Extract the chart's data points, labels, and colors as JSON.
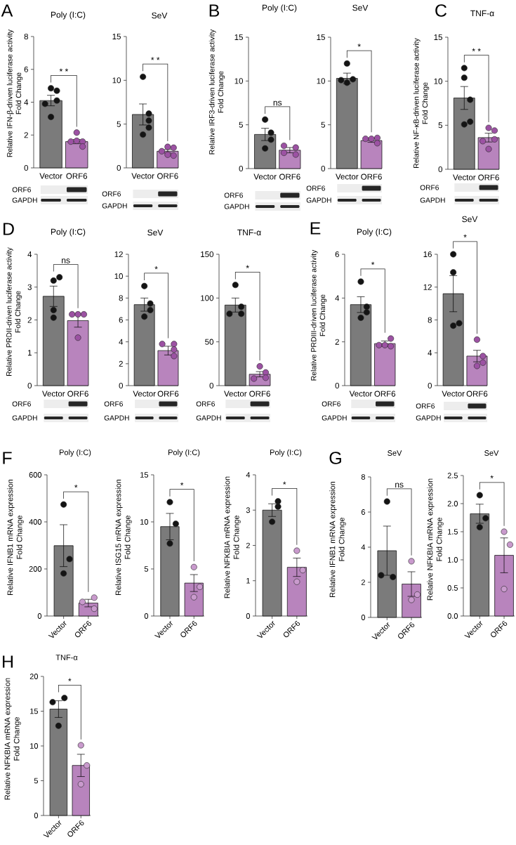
{
  "chart_data": [
    {
      "type": "bar",
      "title": "Poly (I:C)",
      "ylabel": "Relative IFN-β-driven luciferase activity\nFold Change",
      "categories": [
        "Vector",
        "ORF6"
      ],
      "ylim": [
        0,
        8
      ],
      "yticks": [
        0,
        2,
        4,
        6,
        8
      ],
      "annotations": [
        "* *",
        "ORF6",
        "GAPDH",
        "A"
      ],
      "series": [
        {
          "type": "bar",
          "values": [
            4.1,
            1.6
          ],
          "colors": [
            "#7b7b7b",
            "#b884bd"
          ],
          "errors": [
            0.32,
            0.13
          ]
        },
        {
          "type": "scatter",
          "marker": "circle",
          "color": "#141414",
          "x": [
            "Vector",
            "Vector",
            "Vector",
            "Vector",
            "Vector"
          ],
          "values": [
            4.85,
            4.7,
            4.1,
            3.9,
            3.1
          ]
        },
        {
          "type": "scatter",
          "marker": "circle",
          "color": "#9c52a3",
          "x": [
            "ORF6",
            "ORF6",
            "ORF6",
            "ORF6",
            "ORF6"
          ],
          "values": [
            2.15,
            1.6,
            1.6,
            1.65,
            1.3
          ]
        }
      ]
    },
    {
      "type": "bar",
      "title": "SeV",
      "categories": [
        "Vector",
        "ORF6"
      ],
      "ylim": [
        0,
        15
      ],
      "yticks": [
        0,
        5,
        10,
        15
      ],
      "annotations": [
        "* *",
        "ORF6",
        "GAPDH"
      ],
      "series": [
        {
          "type": "bar",
          "values": [
            6.1,
            1.9
          ],
          "colors": [
            "#7b7b7b",
            "#b884bd"
          ],
          "errors": [
            1.2,
            0.2
          ]
        },
        {
          "type": "scatter",
          "marker": "circle",
          "color": "#141414",
          "x": [
            "Vector",
            "Vector",
            "Vector",
            "Vector",
            "Vector"
          ],
          "values": [
            10.4,
            6.2,
            5.4,
            4.6,
            3.8
          ]
        },
        {
          "type": "scatter",
          "marker": "circle",
          "color": "#9c52a3",
          "x": [
            "ORF6",
            "ORF6",
            "ORF6",
            "ORF6",
            "ORF6"
          ],
          "values": [
            2.3,
            1.9,
            2.4,
            1.4,
            1.5
          ]
        }
      ]
    },
    {
      "type": "bar",
      "title": "Poly (I:C)",
      "ylabel": "Relative IRF3-driven luciferase activity\nFold Change",
      "categories": [
        "Vector",
        "ORF6"
      ],
      "ylim": [
        0,
        15
      ],
      "yticks": [
        0,
        5,
        10,
        15
      ],
      "annotations": [
        "ns",
        "ORF6",
        "GAPDH",
        "B"
      ],
      "series": [
        {
          "type": "bar",
          "values": [
            3.9,
            2.1
          ],
          "colors": [
            "#7b7b7b",
            "#b884bd"
          ],
          "errors": [
            0.7,
            0.3
          ]
        },
        {
          "type": "scatter",
          "marker": "circle",
          "color": "#141414",
          "x": [
            "Vector",
            "Vector",
            "Vector",
            "Vector"
          ],
          "values": [
            5.6,
            4.1,
            3.3,
            2.3
          ]
        },
        {
          "type": "scatter",
          "marker": "circle",
          "color": "#9c52a3",
          "x": [
            "ORF6",
            "ORF6",
            "ORF6",
            "ORF6"
          ],
          "values": [
            2.4,
            2.6,
            1.6,
            1.8
          ]
        }
      ]
    },
    {
      "type": "bar",
      "title": "SeV",
      "categories": [
        "Vector",
        "ORF6"
      ],
      "ylim": [
        0,
        15
      ],
      "yticks": [
        0,
        5,
        10,
        15
      ],
      "annotations": [
        "*",
        "ORF6",
        "GAPDH"
      ],
      "series": [
        {
          "type": "bar",
          "values": [
            10.3,
            3.2
          ],
          "colors": [
            "#7b7b7b",
            "#b884bd"
          ],
          "errors": [
            0.6,
            0.2
          ]
        },
        {
          "type": "scatter",
          "marker": "circle",
          "color": "#141414",
          "x": [
            "Vector",
            "Vector",
            "Vector",
            "Vector"
          ],
          "values": [
            12.0,
            10.2,
            10.1,
            9.8
          ]
        },
        {
          "type": "scatter",
          "marker": "circle",
          "color": "#9c52a3",
          "x": [
            "ORF6",
            "ORF6",
            "ORF6",
            "ORF6"
          ],
          "values": [
            3.5,
            3.4,
            3.4,
            2.9
          ]
        }
      ]
    },
    {
      "type": "bar",
      "title": "TNF-α",
      "ylabel": "Relative NF-κB-driven luciferase activity\nFold Change",
      "categories": [
        "Vector",
        "ORF6"
      ],
      "ylim": [
        0,
        15
      ],
      "yticks": [
        0,
        5,
        10,
        15
      ],
      "annotations": [
        "* *",
        "ORF6",
        "GAPDH",
        "C"
      ],
      "series": [
        {
          "type": "bar",
          "values": [
            8.1,
            3.6
          ],
          "colors": [
            "#7b7b7b",
            "#b884bd"
          ],
          "errors": [
            1.3,
            0.5
          ]
        },
        {
          "type": "scatter",
          "marker": "circle",
          "color": "#141414",
          "x": [
            "Vector",
            "Vector",
            "Vector",
            "Vector",
            "Vector"
          ],
          "values": [
            11.5,
            10.4,
            7.9,
            5.1,
            5.4
          ]
        },
        {
          "type": "scatter",
          "marker": "circle",
          "color": "#9c52a3",
          "x": [
            "ORF6",
            "ORF6",
            "ORF6",
            "ORF6",
            "ORF6"
          ],
          "values": [
            4.7,
            4.4,
            3.4,
            3.2,
            2.3
          ]
        }
      ]
    },
    {
      "type": "bar",
      "title": "Poly (I:C)",
      "ylabel": "Relative PRDII-driven luciferase activity\nFold Change",
      "categories": [
        "Vector",
        "ORF6"
      ],
      "ylim": [
        0,
        4
      ],
      "yticks": [
        0,
        1,
        2,
        3,
        4
      ],
      "annotations": [
        "ns",
        "ORF6",
        "GAPDH",
        "D"
      ],
      "series": [
        {
          "type": "bar",
          "values": [
            2.72,
            1.98
          ],
          "colors": [
            "#7b7b7b",
            "#b884bd"
          ],
          "errors": [
            0.31,
            0.2
          ]
        },
        {
          "type": "scatter",
          "marker": "circle",
          "color": "#141414",
          "x": [
            "Vector",
            "Vector",
            "Vector",
            "Vector"
          ],
          "values": [
            3.2,
            3.3,
            2.3,
            2.07
          ]
        },
        {
          "type": "scatter",
          "marker": "circle",
          "color": "#9c52a3",
          "x": [
            "ORF6",
            "ORF6",
            "ORF6",
            "ORF6"
          ],
          "values": [
            2.17,
            2.17,
            2.17,
            1.46
          ]
        }
      ]
    },
    {
      "type": "bar",
      "title": "SeV",
      "categories": [
        "Vector",
        "ORF6"
      ],
      "ylim": [
        0,
        12
      ],
      "yticks": [
        0,
        2,
        4,
        6,
        8,
        10,
        12
      ],
      "annotations": [
        "*",
        "ORF6",
        "GAPDH"
      ],
      "series": [
        {
          "type": "bar",
          "values": [
            7.4,
            3.2
          ],
          "colors": [
            "#7b7b7b",
            "#b884bd"
          ],
          "errors": [
            0.6,
            0.4
          ]
        },
        {
          "type": "scatter",
          "marker": "circle",
          "color": "#141414",
          "x": [
            "Vector",
            "Vector",
            "Vector",
            "Vector"
          ],
          "values": [
            9.1,
            7.5,
            6.9,
            6.3
          ]
        },
        {
          "type": "scatter",
          "marker": "circle",
          "color": "#9c52a3",
          "x": [
            "ORF6",
            "ORF6",
            "ORF6",
            "ORF6"
          ],
          "values": [
            3.8,
            3.8,
            3.3,
            2.7
          ]
        }
      ]
    },
    {
      "type": "bar",
      "title": "TNF-α",
      "categories": [
        "Vector",
        "ORF6"
      ],
      "ylim": [
        0,
        150
      ],
      "yticks": [
        0,
        50,
        100,
        150
      ],
      "annotations": [
        "*",
        "ORF6",
        "GAPDH"
      ],
      "series": [
        {
          "type": "bar",
          "values": [
            92,
            13
          ],
          "colors": [
            "#7b7b7b",
            "#b884bd"
          ],
          "errors": [
            8,
            3
          ]
        },
        {
          "type": "scatter",
          "marker": "circle",
          "color": "#141414",
          "x": [
            "Vector",
            "Vector",
            "Vector",
            "Vector"
          ],
          "values": [
            115,
            90,
            82,
            82
          ]
        },
        {
          "type": "scatter",
          "marker": "circle",
          "color": "#9c52a3",
          "x": [
            "ORF6",
            "ORF6",
            "ORF6",
            "ORF6"
          ],
          "values": [
            22,
            15,
            9,
            8
          ]
        }
      ]
    },
    {
      "type": "bar",
      "title": "Poly (I:C)",
      "ylabel": "Relative PRDIII-driven luciferase activity\nFold Change",
      "categories": [
        "Vector",
        "ORF6"
      ],
      "ylim": [
        0,
        6
      ],
      "yticks": [
        0,
        2,
        4,
        6
      ],
      "annotations": [
        "*",
        "ORF6",
        "GAPDH",
        "E"
      ],
      "series": [
        {
          "type": "bar",
          "values": [
            3.7,
            1.92
          ],
          "colors": [
            "#7b7b7b",
            "#b884bd"
          ],
          "errors": [
            0.36,
            0.12
          ]
        },
        {
          "type": "scatter",
          "marker": "circle",
          "color": "#141414",
          "x": [
            "Vector",
            "Vector",
            "Vector",
            "Vector"
          ],
          "values": [
            4.75,
            3.6,
            3.35,
            3.1
          ]
        },
        {
          "type": "scatter",
          "marker": "circle",
          "color": "#9c52a3",
          "x": [
            "ORF6",
            "ORF6",
            "ORF6",
            "ORF6"
          ],
          "values": [
            2.15,
            1.8,
            1.85,
            1.85
          ]
        }
      ]
    },
    {
      "type": "bar",
      "title": "SeV",
      "categories": [
        "Vector",
        "ORF6"
      ],
      "ylim": [
        0,
        16
      ],
      "yticks": [
        0,
        4,
        8,
        12,
        16
      ],
      "annotations": [
        "*",
        "ORF6",
        "GAPDH"
      ],
      "series": [
        {
          "type": "bar",
          "values": [
            11.2,
            3.6
          ],
          "colors": [
            "#7b7b7b",
            "#b884bd"
          ],
          "errors": [
            2.2,
            0.7
          ]
        },
        {
          "type": "scatter",
          "marker": "circle",
          "color": "#141414",
          "x": [
            "Vector",
            "Vector",
            "Vector",
            "Vector"
          ],
          "values": [
            16,
            13.8,
            7.3,
            7.6
          ]
        },
        {
          "type": "scatter",
          "marker": "circle",
          "color": "#9c52a3",
          "x": [
            "ORF6",
            "ORF6",
            "ORF6",
            "ORF6"
          ],
          "values": [
            5.6,
            3.6,
            2.4,
            2.8
          ]
        }
      ]
    },
    {
      "type": "bar",
      "title": "Poly (I:C)",
      "ylabel": "Relative IFNB1 mRNA expression\nFold Change",
      "categories": [
        "Vector",
        "ORF6"
      ],
      "ylim": [
        0,
        600
      ],
      "yticks": [
        0,
        200,
        400,
        600
      ],
      "annotations": [
        "*",
        "F"
      ],
      "series": [
        {
          "type": "bar",
          "values": [
            299,
            55
          ],
          "colors": [
            "#7b7b7b",
            "#b884bd"
          ],
          "errors": [
            89,
            16
          ]
        },
        {
          "type": "scatter",
          "marker": "circle",
          "color": "#141414",
          "x": [
            "Vector",
            "Vector",
            "Vector"
          ],
          "values": [
            474,
            242,
            181
          ]
        },
        {
          "type": "scatter",
          "marker": "circle",
          "color": "#c99acd",
          "x": [
            "ORF6",
            "ORF6",
            "ORF6"
          ],
          "values": [
            78,
            60,
            31
          ]
        }
      ]
    },
    {
      "type": "bar",
      "title": "Poly (I:C)",
      "ylabel": "Relative ISG15 mRNA expression\nFold Change",
      "categories": [
        "Vector",
        "ORF6"
      ],
      "ylim": [
        0,
        15
      ],
      "yticks": [
        0,
        5,
        10,
        15
      ],
      "annotations": [
        "*"
      ],
      "series": [
        {
          "type": "bar",
          "values": [
            9.5,
            3.5
          ],
          "colors": [
            "#7b7b7b",
            "#b884bd"
          ],
          "errors": [
            1.4,
            0.9
          ]
        },
        {
          "type": "scatter",
          "marker": "circle",
          "color": "#141414",
          "x": [
            "Vector",
            "Vector",
            "Vector"
          ],
          "values": [
            12.1,
            9.8,
            7.7
          ]
        },
        {
          "type": "scatter",
          "marker": "circle",
          "color": "#c99acd",
          "x": [
            "ORF6",
            "ORF6",
            "ORF6"
          ],
          "values": [
            5.2,
            3.1,
            2.0
          ]
        }
      ]
    },
    {
      "type": "bar",
      "title": "Poly (I:C)",
      "ylabel": "Relative NFKBIA mRNA expression\nFold Change",
      "categories": [
        "Vector",
        "ORF6"
      ],
      "ylim": [
        0,
        4
      ],
      "yticks": [
        0,
        1,
        2,
        3,
        4
      ],
      "annotations": [
        "*"
      ],
      "series": [
        {
          "type": "bar",
          "values": [
            3.0,
            1.38
          ],
          "colors": [
            "#7b7b7b",
            "#b884bd"
          ],
          "errors": [
            0.18,
            0.26
          ]
        },
        {
          "type": "scatter",
          "marker": "circle",
          "color": "#141414",
          "x": [
            "Vector",
            "Vector",
            "Vector"
          ],
          "values": [
            3.25,
            3.1,
            2.67
          ]
        },
        {
          "type": "scatter",
          "marker": "circle",
          "color": "#c99acd",
          "x": [
            "ORF6",
            "ORF6",
            "ORF6"
          ],
          "values": [
            1.85,
            1.3,
            0.97
          ]
        }
      ]
    },
    {
      "type": "bar",
      "title": "SeV",
      "ylabel": "Relative IFNB1 mRNA expression\nFold Change",
      "categories": [
        "Vector",
        "ORF6"
      ],
      "ylim": [
        0,
        8
      ],
      "yticks": [
        0,
        2,
        4,
        6,
        8
      ],
      "annotations": [
        "ns",
        "G"
      ],
      "series": [
        {
          "type": "bar",
          "values": [
            3.8,
            1.9
          ],
          "colors": [
            "#7b7b7b",
            "#b884bd"
          ],
          "errors": [
            1.4,
            0.7
          ]
        },
        {
          "type": "scatter",
          "marker": "circle",
          "color": "#141414",
          "x": [
            "Vector",
            "Vector",
            "Vector"
          ],
          "values": [
            6.6,
            2.3,
            2.4
          ]
        },
        {
          "type": "scatter",
          "marker": "circle",
          "color": "#c99acd",
          "x": [
            "ORF6",
            "ORF6",
            "ORF6"
          ],
          "values": [
            3.2,
            1.0,
            1.3
          ]
        }
      ]
    },
    {
      "type": "bar",
      "title": "SeV",
      "ylabel": "Relative NFKBIA mRNA expression\nFold Change",
      "categories": [
        "Vector",
        "ORF6"
      ],
      "ylim": [
        0,
        2.5
      ],
      "yticks": [
        {
          "value": 0,
          "label": "0.0"
        },
        0.5,
        {
          "value": 1,
          "label": "1.0"
        },
        1.5,
        {
          "value": 2,
          "label": "2.0"
        },
        2.5
      ],
      "annotations": [
        "*"
      ],
      "series": [
        {
          "type": "bar",
          "values": [
            1.82,
            1.08
          ],
          "colors": [
            "#7b7b7b",
            "#b884bd"
          ],
          "errors": [
            0.17,
            0.31
          ]
        },
        {
          "type": "scatter",
          "marker": "circle",
          "color": "#141414",
          "x": [
            "Vector",
            "Vector",
            "Vector"
          ],
          "values": [
            2.15,
            1.74,
            1.58
          ]
        },
        {
          "type": "scatter",
          "marker": "circle",
          "color": "#c99acd",
          "x": [
            "ORF6",
            "ORF6",
            "ORF6"
          ],
          "values": [
            1.5,
            1.27,
            0.48
          ]
        }
      ]
    },
    {
      "type": "bar",
      "title": "TNF-α",
      "ylabel": "Relative NFKBIA mRNA expression\nFold Change",
      "categories": [
        "Vector",
        "ORF6"
      ],
      "ylim": [
        0,
        20
      ],
      "yticks": [
        0,
        5,
        10,
        15,
        20
      ],
      "annotations": [
        "*",
        "H"
      ],
      "series": [
        {
          "type": "bar",
          "values": [
            15.3,
            7.2
          ],
          "colors": [
            "#7b7b7b",
            "#b884bd"
          ],
          "errors": [
            1.2,
            1.6
          ]
        },
        {
          "type": "scatter",
          "marker": "circle",
          "color": "#141414",
          "x": [
            "Vector",
            "Vector",
            "Vector"
          ],
          "values": [
            16.9,
            16.3,
            12.9
          ]
        },
        {
          "type": "scatter",
          "marker": "circle",
          "color": "#c99acd",
          "x": [
            "ORF6",
            "ORF6",
            "ORF6"
          ],
          "values": [
            10.1,
            7.2,
            4.5
          ]
        }
      ]
    }
  ]
}
